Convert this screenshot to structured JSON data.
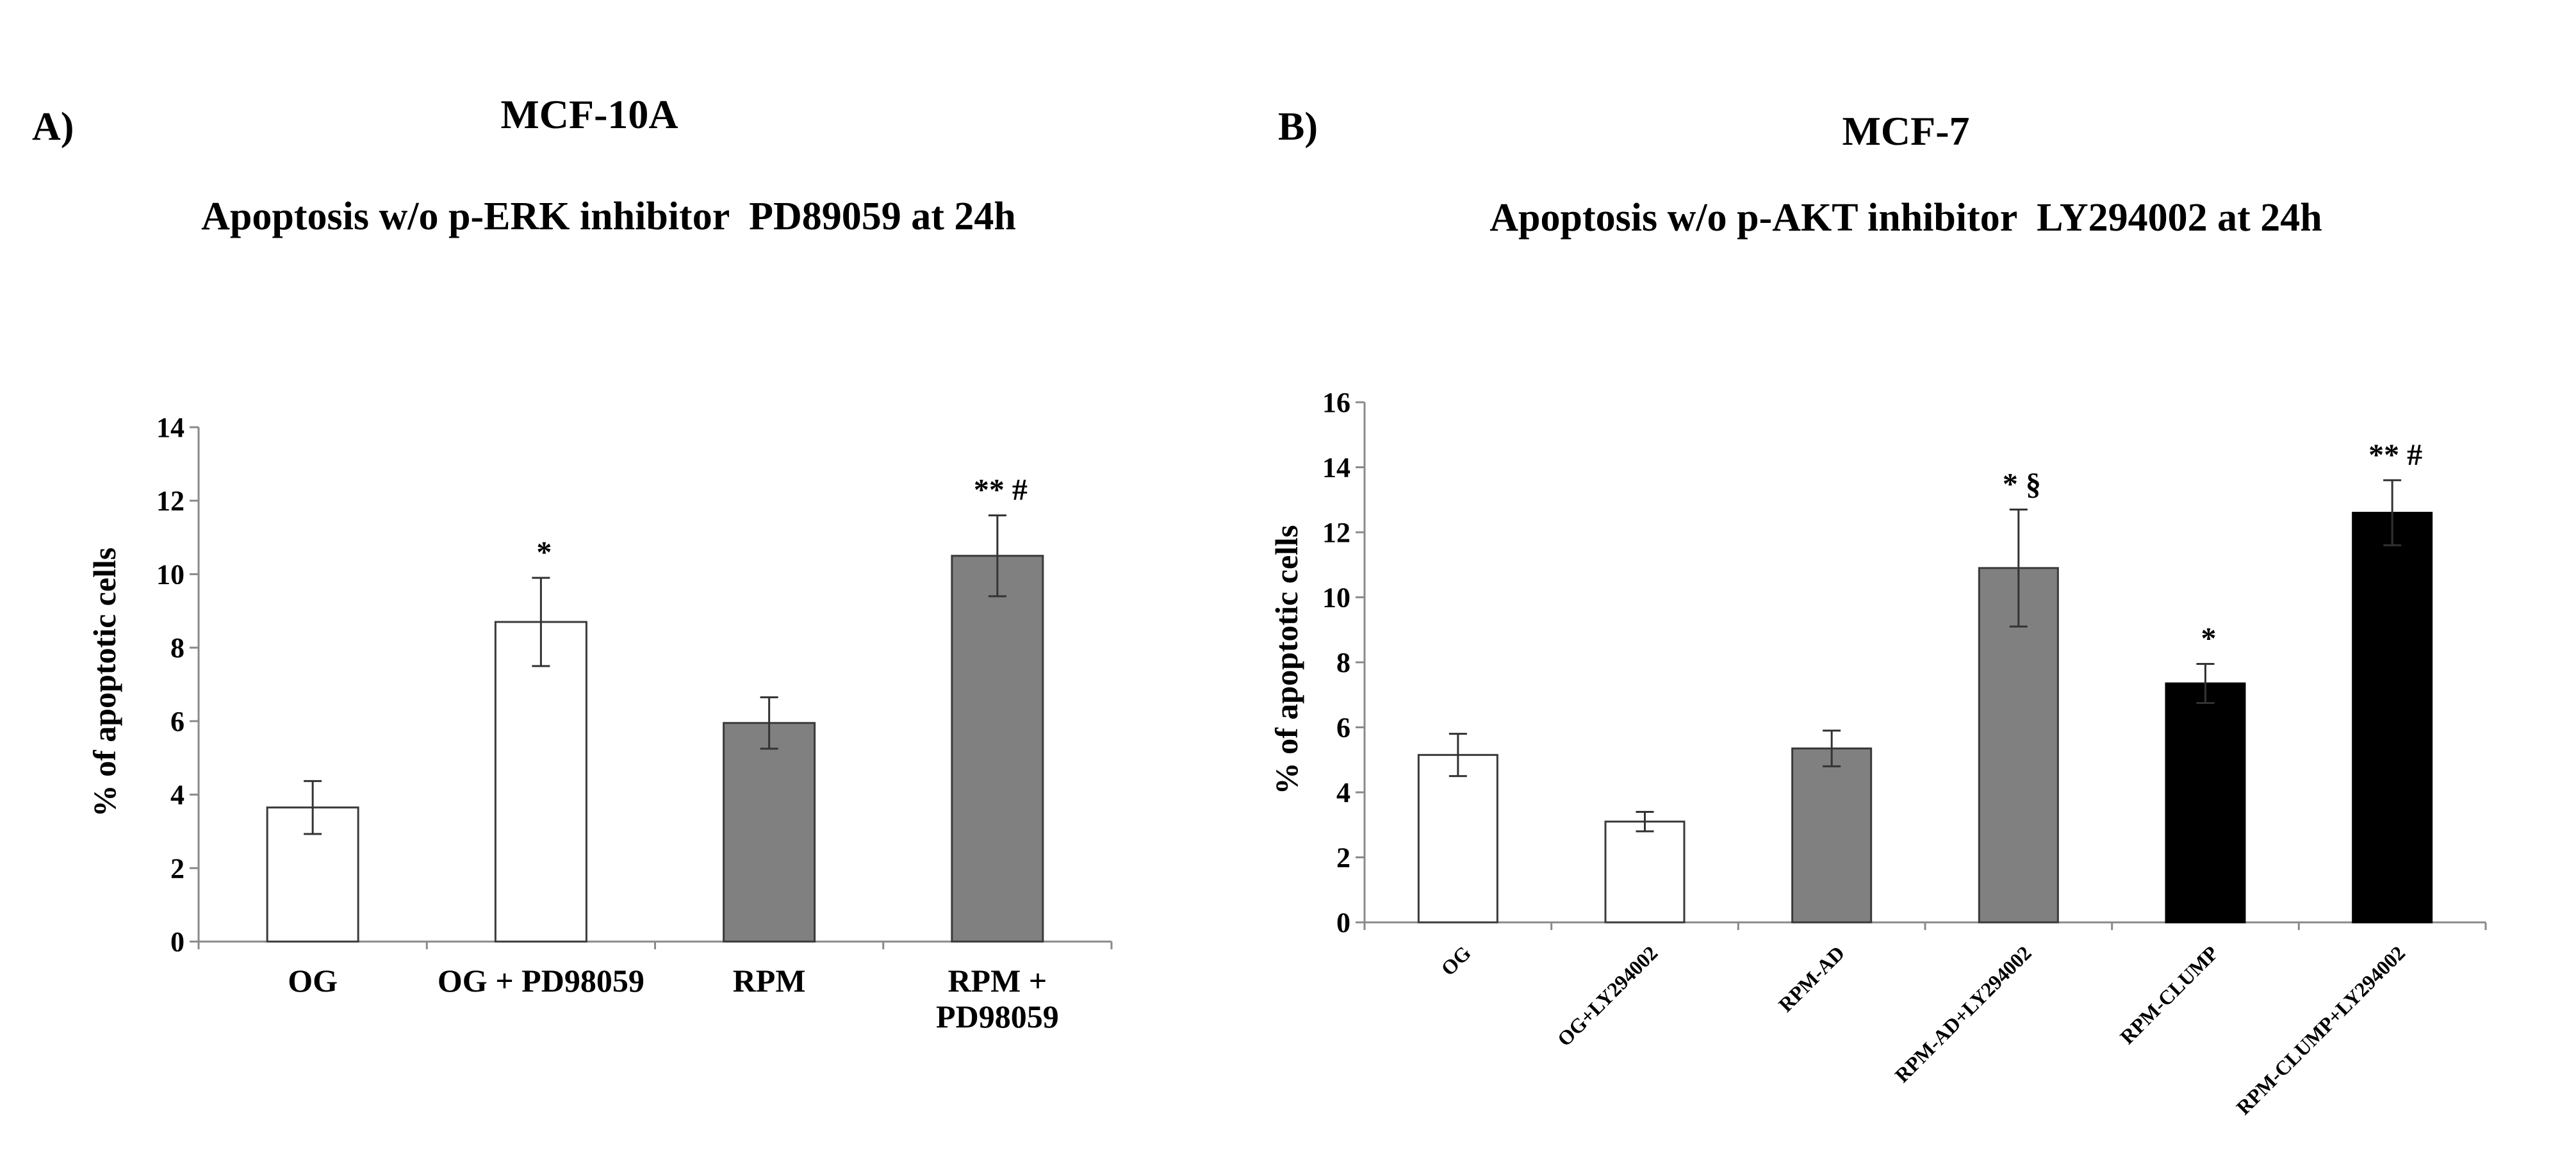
{
  "chart_data": [
    {
      "panel_label": "A)",
      "cell_line": "MCF-10A",
      "title": "Apoptosis w/o p-ERK inhibitor  PD89059 at 24h",
      "type": "bar",
      "ylabel": "% of apoptotic cells",
      "ylim": [
        0,
        14
      ],
      "yticks": [
        0,
        2,
        4,
        6,
        8,
        10,
        12,
        14
      ],
      "categories": [
        [
          "OG"
        ],
        [
          "OG + PD98059"
        ],
        [
          "RPM"
        ],
        [
          "RPM +",
          "PD98059"
        ]
      ],
      "values": [
        3.65,
        8.7,
        5.95,
        10.5
      ],
      "errors": [
        0.72,
        1.2,
        0.7,
        1.1
      ],
      "annotations": [
        "",
        "*",
        "",
        "** #"
      ],
      "fill_colors": [
        "#ffffff",
        "#ffffff",
        "#808080",
        "#808080"
      ],
      "tick_label_rotation": 0
    },
    {
      "panel_label": "B)",
      "cell_line": "MCF-7",
      "title": "Apoptosis w/o p-AKT inhibitor  LY294002 at 24h",
      "type": "bar",
      "ylabel": "% of apoptotic cells",
      "ylim": [
        0,
        16
      ],
      "yticks": [
        0,
        2,
        4,
        6,
        8,
        10,
        12,
        14,
        16
      ],
      "categories": [
        [
          "OG"
        ],
        [
          "OG+LY294002"
        ],
        [
          "RPM-AD"
        ],
        [
          "RPM-AD+LY294002"
        ],
        [
          "RPM-CLUMP"
        ],
        [
          "RPM-CLUMP+LY294002"
        ]
      ],
      "values": [
        5.15,
        3.1,
        5.35,
        10.9,
        7.35,
        12.6
      ],
      "errors": [
        0.65,
        0.3,
        0.55,
        1.8,
        0.6,
        1.0
      ],
      "annotations": [
        "",
        "",
        "",
        "* §",
        "*",
        "** #"
      ],
      "fill_colors": [
        "#ffffff",
        "#ffffff",
        "#808080",
        "#808080",
        "#000000",
        "#000000"
      ],
      "tick_label_rotation": -45
    }
  ]
}
